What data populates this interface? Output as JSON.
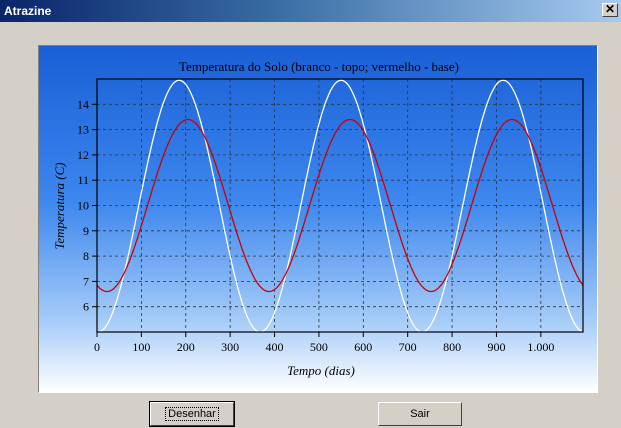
{
  "window": {
    "title": "Atrazine",
    "close_glyph": "✕"
  },
  "buttons": {
    "draw": "Desenhar",
    "exit": "Sair"
  },
  "chart_data": {
    "type": "line",
    "title": "Temperatura do Solo (branco - topo; vermelho - base)",
    "xlabel": "Tempo (dias)",
    "ylabel": "Temperatura (C)",
    "xlim": [
      0,
      1095
    ],
    "ylim": [
      5,
      15
    ],
    "xticks": [
      0,
      100,
      200,
      300,
      400,
      500,
      600,
      700,
      800,
      900,
      1000
    ],
    "xtick_labels": [
      "0",
      "100",
      "200",
      "300",
      "400",
      "500",
      "600",
      "700",
      "800",
      "900",
      "1.000"
    ],
    "yticks": [
      6,
      7,
      8,
      9,
      10,
      11,
      12,
      13,
      14
    ],
    "grid": true,
    "background": "blue-to-white vertical gradient",
    "series": [
      {
        "color": "#ffffff",
        "period_days": 365,
        "min": 5.0,
        "max": 14.95,
        "peak_day": 185,
        "points_by_day": [
          [
            0,
            5.2
          ],
          [
            35,
            5.0
          ],
          [
            90,
            9.0
          ],
          [
            185,
            14.95
          ],
          [
            270,
            9.5
          ],
          [
            365,
            5.2
          ],
          [
            400,
            5.0
          ],
          [
            455,
            9.0
          ],
          [
            550,
            14.95
          ],
          [
            635,
            9.5
          ],
          [
            730,
            5.2
          ],
          [
            765,
            5.0
          ],
          [
            820,
            9.0
          ],
          [
            915,
            14.95
          ],
          [
            1000,
            9.5
          ],
          [
            1095,
            5.2
          ]
        ]
      },
      {
        "color": "#cc0000",
        "period_days": 365,
        "min": 6.6,
        "max": 13.4,
        "peak_day": 205,
        "points_by_day": [
          [
            0,
            6.8
          ],
          [
            25,
            6.6
          ],
          [
            100,
            9.5
          ],
          [
            205,
            13.4
          ],
          [
            300,
            9.5
          ],
          [
            390,
            6.6
          ],
          [
            465,
            9.5
          ],
          [
            570,
            13.4
          ],
          [
            665,
            9.5
          ],
          [
            755,
            6.6
          ],
          [
            830,
            9.5
          ],
          [
            935,
            13.4
          ],
          [
            1030,
            9.5
          ],
          [
            1095,
            7.0
          ]
        ]
      }
    ]
  }
}
